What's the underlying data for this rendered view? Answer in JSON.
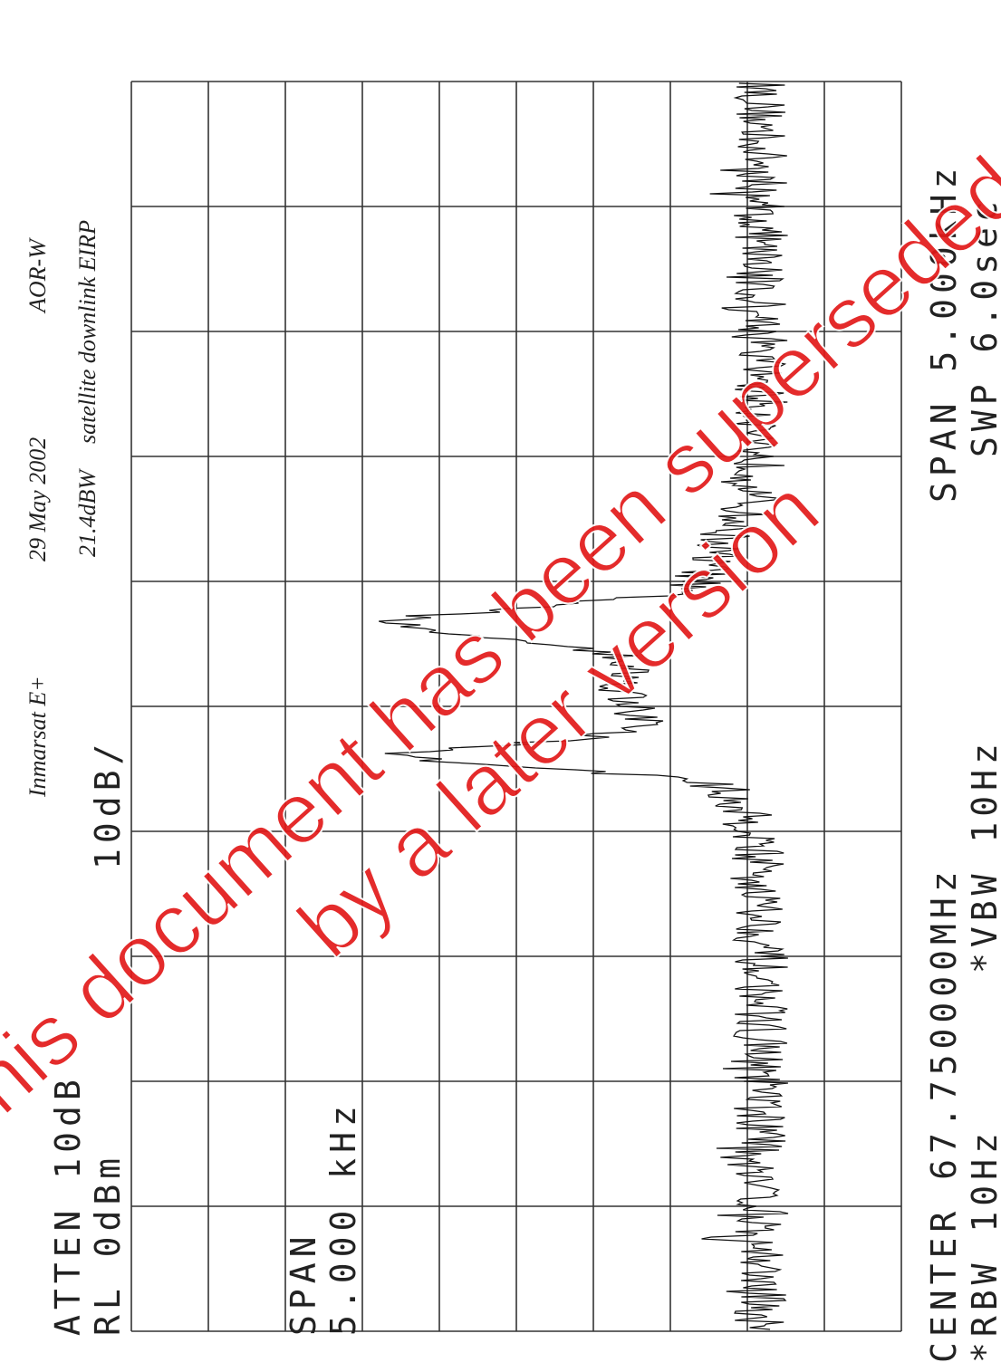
{
  "handwritten": {
    "satellite": "Inmarsat E+",
    "date": "29 May 2002",
    "region": "AOR-W",
    "eirp": "21.4dBW",
    "note": "satellite downlink EIRP"
  },
  "settings": {
    "atten": "ATTEN 10dB",
    "ref_level": "RL 0dBm",
    "scale": "10dB/",
    "span_label": "SPAN",
    "span_value": "5.000 kHz"
  },
  "footer": {
    "center": "CENTER 67.750000MHz",
    "rbw": "*RBW 10Hz",
    "vbw": "*VBW 10Hz",
    "span": "SPAN 5.000kHz",
    "sweep": "SWP 6.0sec"
  },
  "watermark": {
    "line1": "This document has been superseded",
    "line2": "by a later version"
  }
}
